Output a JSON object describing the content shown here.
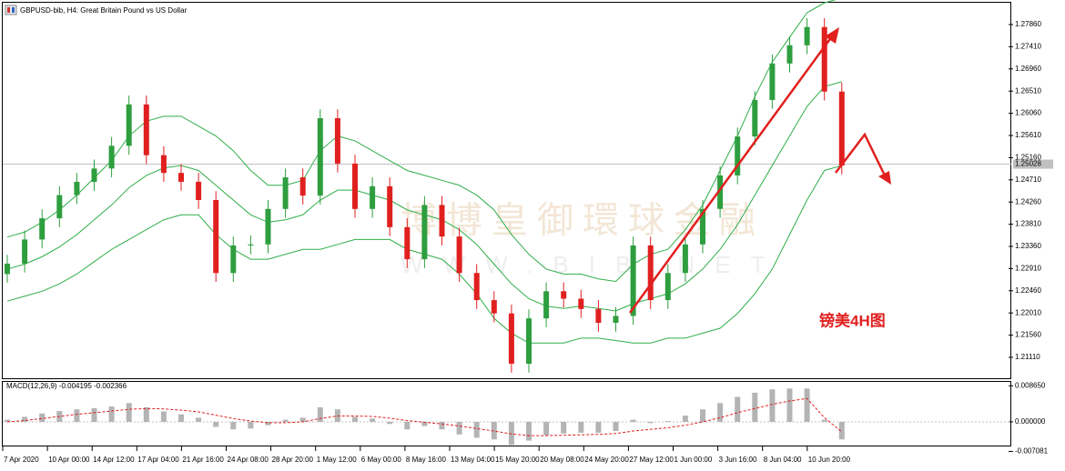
{
  "chart_data": [
    {
      "type": "candlestick",
      "title": "GBPUSD-bib, H4:  Great Britain Pound vs US Dollar",
      "annotations": [
        "镑美4H图",
        "博博皇御環球金融",
        "WWW.BIB.NET"
      ],
      "up_color": "#2e9e3e",
      "down_color": "#e0201f",
      "band_color": "#2fae48",
      "current_price": 1.25028,
      "open": [
        1.228,
        1.2301,
        1.235,
        1.2393,
        1.244,
        1.2467,
        1.2494,
        1.254,
        1.2624,
        1.2521,
        1.2485,
        1.2467,
        1.243,
        1.2282,
        1.2338,
        1.234,
        1.2412,
        1.2476,
        1.2439,
        1.2596,
        1.2504,
        1.2412,
        1.2458,
        1.2375,
        1.231,
        1.242,
        1.2356,
        1.2282,
        1.2227,
        1.22,
        1.2098,
        1.219,
        1.2245,
        1.223,
        1.2209,
        1.2181,
        1.2195,
        1.2338,
        1.2227,
        1.2282,
        1.234,
        1.2412,
        1.248,
        1.2559,
        1.2633,
        1.2707,
        1.2744,
        1.2781,
        1.265
      ],
      "high": [
        1.2319,
        1.2368,
        1.2411,
        1.2458,
        1.2485,
        1.2512,
        1.2558,
        1.2642,
        1.2642,
        1.2539,
        1.2503,
        1.2485,
        1.2448,
        1.2356,
        1.2358,
        1.243,
        1.2494,
        1.2494,
        1.2614,
        1.2614,
        1.2522,
        1.2476,
        1.2476,
        1.2393,
        1.2438,
        1.2438,
        1.2374,
        1.23,
        1.2245,
        1.2218,
        1.2208,
        1.2263,
        1.2263,
        1.2248,
        1.2227,
        1.2213,
        1.2356,
        1.2356,
        1.23,
        1.2358,
        1.243,
        1.2498,
        1.2577,
        1.2651,
        1.2725,
        1.2762,
        1.2799,
        1.2799,
        1.2668
      ],
      "low": [
        1.2262,
        1.2283,
        1.2332,
        1.2375,
        1.2422,
        1.2449,
        1.2476,
        1.2522,
        1.2503,
        1.2467,
        1.2449,
        1.2412,
        1.2264,
        1.2264,
        1.232,
        1.2322,
        1.2394,
        1.2421,
        1.2421,
        1.2486,
        1.2394,
        1.2394,
        1.2357,
        1.2292,
        1.2292,
        1.2338,
        1.2264,
        1.2209,
        1.2182,
        1.208,
        1.208,
        1.2172,
        1.2212,
        1.2191,
        1.2163,
        1.2163,
        1.2177,
        1.2209,
        1.2209,
        1.2264,
        1.2322,
        1.2394,
        1.2462,
        1.2541,
        1.2615,
        1.2689,
        1.2726,
        1.2632,
        1.2482
      ],
      "close": [
        1.2301,
        1.235,
        1.2393,
        1.244,
        1.2467,
        1.2494,
        1.254,
        1.2624,
        1.2521,
        1.2485,
        1.2467,
        1.243,
        1.2282,
        1.2338,
        1.234,
        1.2412,
        1.2476,
        1.2439,
        1.2596,
        1.2504,
        1.2412,
        1.2458,
        1.2375,
        1.231,
        1.242,
        1.2356,
        1.2282,
        1.2227,
        1.22,
        1.2098,
        1.219,
        1.2245,
        1.223,
        1.2209,
        1.2181,
        1.2195,
        1.2338,
        1.2227,
        1.2282,
        1.234,
        1.2412,
        1.248,
        1.2559,
        1.2633,
        1.2707,
        1.2744,
        1.2781,
        1.265,
        1.25
      ],
      "bands": {
        "upper": [
          1.2355,
          1.2365,
          1.2385,
          1.241,
          1.244,
          1.2475,
          1.251,
          1.256,
          1.259,
          1.26,
          1.26,
          1.258,
          1.256,
          1.253,
          1.249,
          1.246,
          1.246,
          1.247,
          1.253,
          1.256,
          1.255,
          1.253,
          1.251,
          1.249,
          1.248,
          1.247,
          1.246,
          1.244,
          1.241,
          1.236,
          1.232,
          1.229,
          1.228,
          1.228,
          1.227,
          1.2265,
          1.23,
          1.232,
          1.233,
          1.237,
          1.242,
          1.249,
          1.256,
          1.264,
          1.271,
          1.276,
          1.281,
          1.283,
          1.284
        ],
        "middle": [
          1.229,
          1.23,
          1.2315,
          1.2335,
          1.236,
          1.239,
          1.242,
          1.2455,
          1.248,
          1.2495,
          1.25,
          1.249,
          1.246,
          1.243,
          1.24,
          1.2385,
          1.239,
          1.24,
          1.243,
          1.245,
          1.245,
          1.244,
          1.243,
          1.241,
          1.24,
          1.239,
          1.237,
          1.234,
          1.23,
          1.226,
          1.223,
          1.2215,
          1.221,
          1.2215,
          1.221,
          1.2205,
          1.222,
          1.223,
          1.224,
          1.226,
          1.229,
          1.233,
          1.238,
          1.244,
          1.25,
          1.256,
          1.262,
          1.266,
          1.267
        ],
        "lower": [
          1.2225,
          1.2235,
          1.2245,
          1.226,
          1.228,
          1.2305,
          1.233,
          1.235,
          1.237,
          1.239,
          1.24,
          1.24,
          1.236,
          1.233,
          1.231,
          1.231,
          1.232,
          1.233,
          1.233,
          1.234,
          1.235,
          1.235,
          1.235,
          1.233,
          1.232,
          1.231,
          1.228,
          1.224,
          1.219,
          1.216,
          1.214,
          1.214,
          1.214,
          1.215,
          1.215,
          1.2145,
          1.214,
          1.214,
          1.215,
          1.215,
          1.216,
          1.217,
          1.22,
          1.224,
          1.229,
          1.236,
          1.243,
          1.249,
          1.25
        ]
      },
      "ylim": [
        1.20667,
        1.28321
      ],
      "yticks": [
        {
          "value": 1.2786,
          "label": "1.27860"
        },
        {
          "value": 1.2741,
          "label": "1.27410"
        },
        {
          "value": 1.2696,
          "label": "1.26960"
        },
        {
          "value": 1.2651,
          "label": "1.26510"
        },
        {
          "value": 1.2606,
          "label": "1.26060"
        },
        {
          "value": 1.2561,
          "label": "1.25610"
        },
        {
          "value": 1.2516,
          "label": "1.25160"
        },
        {
          "value": 1.2471,
          "label": "1.24710"
        },
        {
          "value": 1.2426,
          "label": "1.24260"
        },
        {
          "value": 1.2381,
          "label": "1.23810"
        },
        {
          "value": 1.2336,
          "label": "1.23360"
        },
        {
          "value": 1.2291,
          "label": "1.22910"
        },
        {
          "value": 1.2246,
          "label": "1.22460"
        },
        {
          "value": 1.2201,
          "label": "1.22010"
        },
        {
          "value": 1.2156,
          "label": "1.21560"
        },
        {
          "value": 1.2111,
          "label": "1.21110"
        }
      ]
    },
    {
      "type": "macd",
      "title": "MACD(12,26,9) -0.004195 -0.002366",
      "hist_color": "#b4b4b4",
      "signal_color": "#e0201f",
      "histogram": [
        0.0005,
        0.0012,
        0.002,
        0.0026,
        0.003,
        0.0033,
        0.0037,
        0.0045,
        0.0035,
        0.0025,
        0.0018,
        0.001,
        -0.0012,
        -0.0018,
        -0.0016,
        -0.0008,
        0.0005,
        0.001,
        0.0035,
        0.003,
        0.0012,
        0.0008,
        -0.0005,
        -0.0018,
        -0.001,
        -0.0018,
        -0.003,
        -0.0038,
        -0.0042,
        -0.0055,
        -0.0045,
        -0.0032,
        -0.0028,
        -0.0026,
        -0.0026,
        -0.0022,
        0.0005,
        -0.0003,
        0.0002,
        0.0015,
        0.003,
        0.0045,
        0.006,
        0.007,
        0.0078,
        0.008,
        0.008,
        0.0005,
        -0.0042
      ],
      "signal": [
        0.0,
        0.0003,
        0.0008,
        0.0013,
        0.0018,
        0.0022,
        0.0026,
        0.003,
        0.0032,
        0.0031,
        0.0028,
        0.0024,
        0.0016,
        0.0008,
        0.0002,
        -0.0002,
        -0.0002,
        0.0,
        0.0008,
        0.0014,
        0.0014,
        0.0013,
        0.0009,
        0.0003,
        -0.0001,
        -0.0005,
        -0.001,
        -0.0016,
        -0.0022,
        -0.0029,
        -0.0033,
        -0.0033,
        -0.0032,
        -0.0031,
        -0.003,
        -0.0028,
        -0.0022,
        -0.0018,
        -0.0014,
        -0.0008,
        0.0,
        0.001,
        0.0022,
        0.0032,
        0.0042,
        0.005,
        0.0056,
        0.001,
        -0.0024
      ],
      "ylim": [
        -0.0072,
        0.0098
      ],
      "yticks": [
        {
          "value": 0.00865,
          "label": "0.008650"
        },
        {
          "value": 0,
          "label": "0.000000"
        },
        {
          "value": -0.007081,
          "label": "-0.007081"
        }
      ],
      "xtick_labels": [
        "7 Apr 2020",
        "10 Apr 00:00",
        "14 Apr 12:00",
        "17 Apr 04:00",
        "21 Apr 16:00",
        "24 Apr 08:00",
        "28 Apr 20:00",
        "1 May 12:00",
        "6 May 00:00",
        "8 May 16:00",
        "13 May 04:00",
        "15 May 20:00",
        "20 May 08:00",
        "24 May 20:00",
        "27 May 12:00",
        "1 Jun 00:00",
        "3 Jun 16:00",
        "8 Jun 04:00",
        "10 Jun 20:00"
      ]
    }
  ]
}
